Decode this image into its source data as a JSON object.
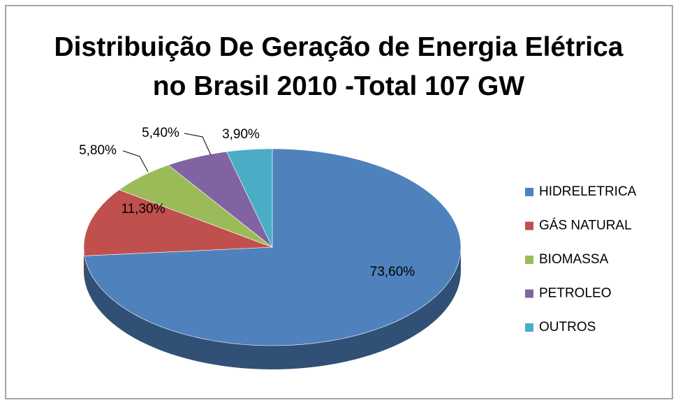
{
  "chart_data": {
    "type": "pie",
    "title": "Distribuição De Geração de Energia Elétrica no Brasil 2010 -Total 107 GW",
    "categories": [
      "HIDRELETRICA",
      "GÁS NATURAL",
      "BIOMASSA",
      "PETROLEO",
      "OUTROS"
    ],
    "values": [
      73.6,
      11.3,
      5.8,
      5.4,
      3.9
    ],
    "value_labels": [
      "73,60%",
      "11,30%",
      "5,80%",
      "5,40%",
      "3,90%"
    ],
    "colors": [
      "#4F81BD",
      "#C0504D",
      "#9BBB59",
      "#8064A2",
      "#4BACC6"
    ],
    "legend": "right"
  }
}
